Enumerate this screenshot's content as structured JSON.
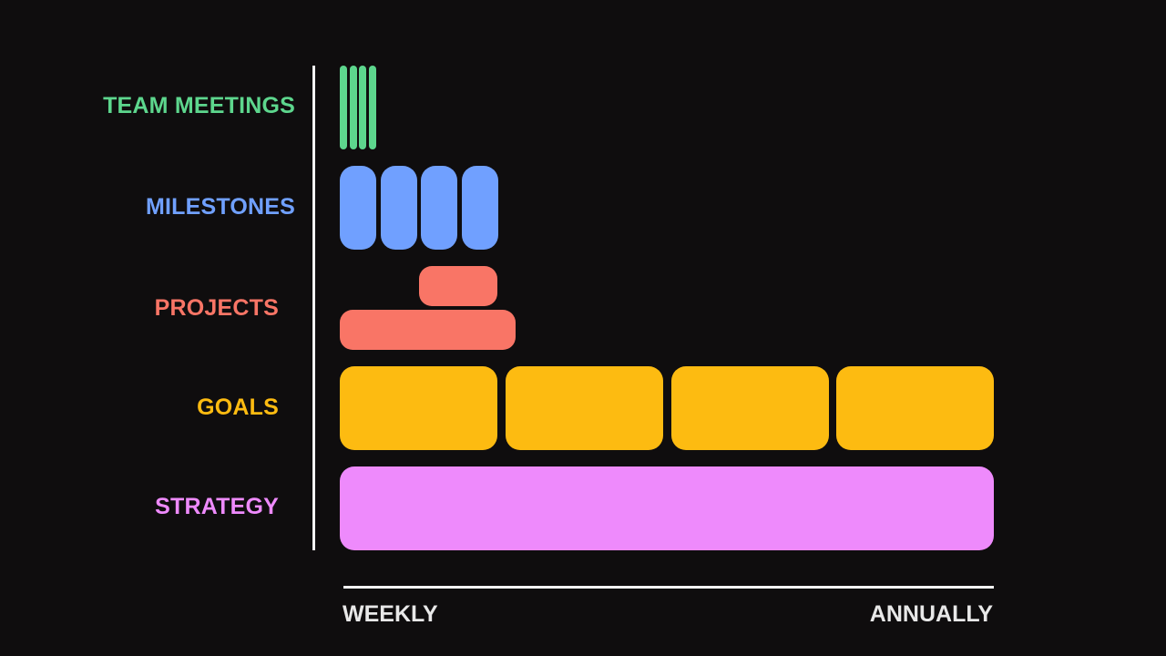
{
  "rows": [
    {
      "key": "team_meetings",
      "label": "TEAM MEETINGS",
      "color": "#5dd68d"
    },
    {
      "key": "milestones",
      "label": "MILESTONES",
      "color": "#70a0ff"
    },
    {
      "key": "projects",
      "label": "PROJECTS",
      "color": "#f97566"
    },
    {
      "key": "goals",
      "label": "GOALS",
      "color": "#fdbb11"
    },
    {
      "key": "strategy",
      "label": "STRATEGY",
      "color": "#ee8afc"
    }
  ],
  "axis": {
    "start_label": "WEEKLY",
    "end_label": "ANNUALLY"
  }
}
